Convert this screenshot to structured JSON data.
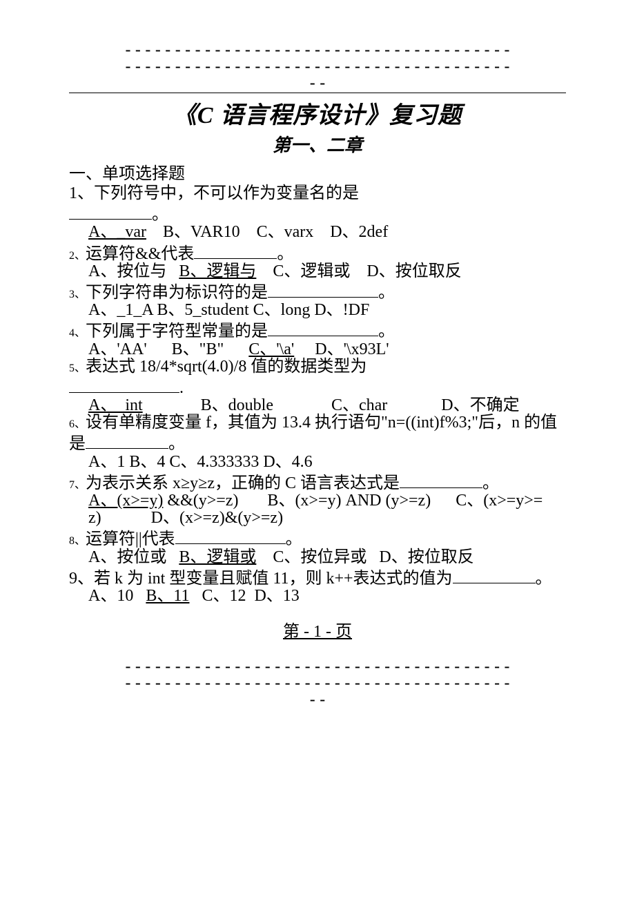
{
  "dashes_top1": "---------------------------------------",
  "dashes_top2": "---------------------------------------",
  "dashes_top3": "--",
  "title": "《C 语言程序设计》复习题",
  "subtitle": "第一、二章",
  "section": "一、单项选择题",
  "q1": {
    "stem": "1、下列符号中，不可以作为变量名的是",
    "blank_suffix": "。",
    "opts": "A、_var    B、VAR10    C、varx    D、2def"
  },
  "q2": {
    "prefix": "2、",
    "stem": "运算符&&代表",
    "blank_suffix": "。",
    "opts": "A、按位与   B、逻辑与    C、逻辑或    D、按位取反"
  },
  "q3": {
    "prefix": "3、",
    "stem": "下列字符串为标识符的是",
    "blank_suffix": "。",
    "opts": "A、_1_A    B、5_student     C、long   D、!DF"
  },
  "q4": {
    "prefix": "4、",
    "stem": "下列属于字符型常量的是",
    "blank_suffix": "。",
    "opts": "A、'AA'      B、\"B\"      C、'\\a'     D、'\\x93L'"
  },
  "q5": {
    "prefix": "5、",
    "stem": "表达式 18/4*sqrt(4.0)/8 值的数据类型为",
    "blank_suffix": ".",
    "optA": "A、  int              B、double              C、char             D、不确定"
  },
  "q6": {
    "prefix": "6、",
    "stem1": "设有单精度变量 f，其值为 13.4 执行语句\"n=((int)f%3;\"后，n 的值是",
    "blank_suffix": "。",
    "opts": "A、1   B、4   C、4.333333   D、4.6"
  },
  "q7": {
    "prefix": "7、",
    "stem": "为表示关系 x≥y≥z，正确的 C 语言表达式是",
    "blank_suffix": "。",
    "opts": "A、(x>=y) &&(y>=z)       B、(x>=y) AND (y>=z)      C、(x>=y>=z)            D、(x>=z)&(y>=z)"
  },
  "q8": {
    "prefix": "8、",
    "stem": "运算符||代表",
    "blank_suffix": "。",
    "opts": "A、按位或   B、逻辑或    C、按位异或   D、按位取反"
  },
  "q9": {
    "stem": "9、若 k 为 int 型变量且赋值 11，则 k++表达式的值为",
    "blank_suffix": "。",
    "opts": "A、10   B、11   C、12  D、13"
  },
  "footer": "第 - 1 - 页",
  "dashes_bot1": "---------------------------------------",
  "dashes_bot2": "---------------------------------------",
  "dashes_bot3": "--"
}
